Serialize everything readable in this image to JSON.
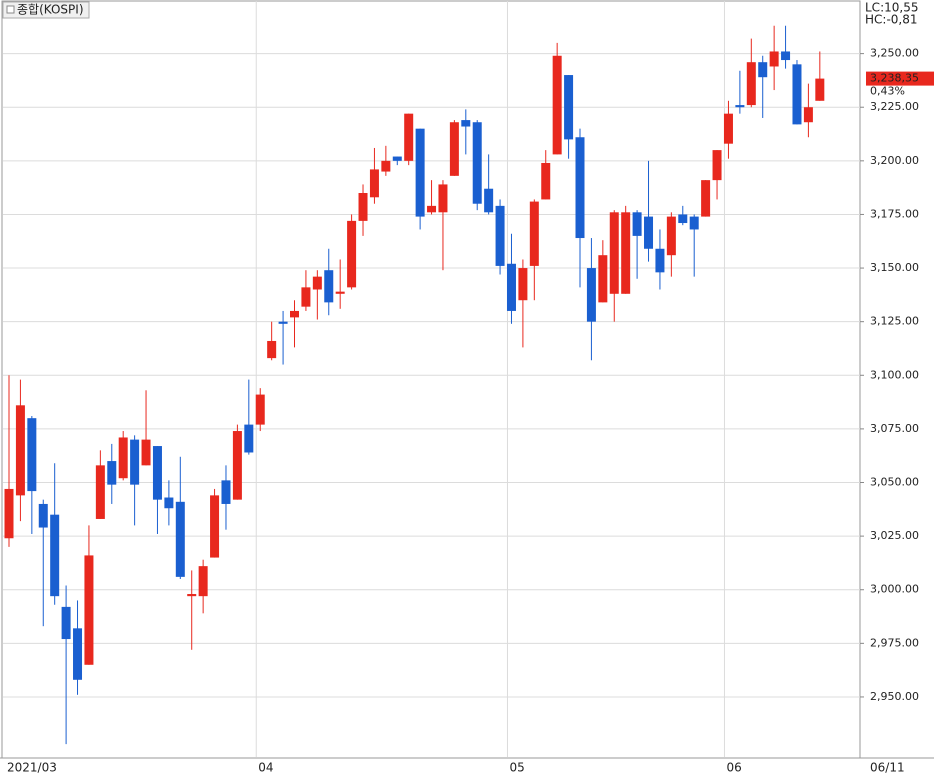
{
  "chart_data": {
    "type": "candlestick",
    "title": "종합(KOSPI)",
    "indicators": [
      {
        "text": "LC:10,55",
        "color": "#e8281e"
      },
      {
        "text": "HC:-0,81",
        "color": "#1a5fd0"
      }
    ],
    "last_price": {
      "value": 3238.35,
      "label": "3,238,35"
    },
    "change_label": "0,43%",
    "date_label": "06/11",
    "up_color": "#e8281e",
    "down_color": "#1a5fd0",
    "grid": true,
    "ylim": [
      2922,
      3275
    ],
    "yticks": [
      {
        "value": 2950,
        "label": "2,950.00"
      },
      {
        "value": 2975,
        "label": "2,975.00"
      },
      {
        "value": 3000,
        "label": "3,000.00"
      },
      {
        "value": 3025,
        "label": "3,025.00"
      },
      {
        "value": 3050,
        "label": "3,050.00"
      },
      {
        "value": 3075,
        "label": "3,075.00"
      },
      {
        "value": 3100,
        "label": "3,100.00"
      },
      {
        "value": 3125,
        "label": "3,125.00"
      },
      {
        "value": 3150,
        "label": "3,150.00"
      },
      {
        "value": 3175,
        "label": "3,175.00"
      },
      {
        "value": 3200,
        "label": "3,200.00"
      },
      {
        "value": 3225,
        "label": "3,225.00"
      },
      {
        "value": 3250,
        "label": "3,250.00"
      }
    ],
    "categories": [
      "2021/03",
      null,
      null,
      null,
      null,
      null,
      null,
      null,
      null,
      null,
      null,
      null,
      null,
      null,
      null,
      null,
      null,
      null,
      null,
      null,
      null,
      null,
      "04",
      null,
      null,
      null,
      null,
      null,
      null,
      null,
      null,
      null,
      null,
      null,
      null,
      null,
      null,
      null,
      null,
      null,
      null,
      null,
      null,
      null,
      "05",
      null,
      null,
      null,
      null,
      null,
      null,
      null,
      null,
      null,
      null,
      null,
      null,
      null,
      null,
      null,
      null,
      null,
      null,
      "06",
      null,
      null,
      null,
      null,
      null,
      null,
      null,
      null
    ],
    "open": [
      3024,
      3044,
      3080,
      3040,
      3035,
      2992,
      2982,
      2965,
      3033,
      3060,
      3052,
      3070,
      3058,
      3067,
      3043,
      3041,
      2997,
      2997,
      3015,
      3051,
      3042,
      3077,
      3077,
      3108,
      3125,
      3127,
      3132,
      3140,
      3149,
      3138,
      3141,
      3172,
      3183,
      3195,
      3202,
      3200,
      3215,
      3176,
      3176,
      3193,
      3219,
      3218,
      3187,
      3179,
      3152,
      3135,
      3151,
      3182,
      3203,
      3240,
      3211,
      3150,
      3134,
      3138,
      3138,
      3176,
      3174,
      3159,
      3156,
      3175,
      3174,
      3174,
      3191,
      3208,
      3226,
      3226,
      3246,
      3244,
      3251,
      3245,
      3218,
      3228
    ],
    "high": [
      3100,
      3098,
      3081,
      3042,
      3059,
      3002,
      2995,
      3030,
      3065,
      3068,
      3074,
      3072,
      3093,
      3067,
      3051,
      3062,
      3009,
      3014,
      3047,
      3058,
      3077,
      3098,
      3094,
      3125,
      3130,
      3135,
      3149,
      3149,
      3159,
      3154,
      3175,
      3189,
      3206,
      3207,
      3202,
      3222,
      3215,
      3191,
      3191,
      3219,
      3224,
      3219,
      3203,
      3182,
      3166,
      3154,
      3182,
      3205,
      3255,
      3240,
      3215,
      3164,
      3163,
      3177,
      3179,
      3177,
      3200,
      3168,
      3176,
      3179,
      3175,
      3191,
      3205,
      3228,
      3242,
      3257,
      3249,
      3263,
      3263,
      3247,
      3236,
      3251
    ],
    "low": [
      3020,
      3032,
      3026,
      2983,
      2993,
      2928,
      2951,
      2965,
      3033,
      3040,
      3051,
      3030,
      3058,
      3026,
      3030,
      3005,
      2972,
      2989,
      3015,
      3028,
      3042,
      3063,
      3074,
      3107,
      3105,
      3113,
      3130,
      3126,
      3128,
      3131,
      3140,
      3165,
      3180,
      3193,
      3198,
      3198,
      3168,
      3175,
      3149,
      3193,
      3203,
      3177,
      3175,
      3147,
      3124,
      3113,
      3135,
      3182,
      3203,
      3201,
      3141,
      3107,
      3134,
      3125,
      3138,
      3145,
      3153,
      3140,
      3146,
      3170,
      3146,
      3174,
      3182,
      3201,
      3222,
      3225,
      3220,
      3233,
      3243,
      3217,
      3211,
      3228
    ],
    "close": [
      3047,
      3086,
      3046,
      3029,
      2997,
      2977,
      2958,
      3016,
      3058,
      3049,
      3071,
      3049,
      3070,
      3042,
      3038,
      3006,
      2998,
      3011,
      3044,
      3040,
      3074,
      3064,
      3091,
      3116,
      3124,
      3130,
      3141,
      3146,
      3134,
      3139,
      3172,
      3185,
      3196,
      3200,
      3200,
      3222,
      3174,
      3179,
      3189,
      3218,
      3216,
      3180,
      3176,
      3151,
      3130,
      3150,
      3181,
      3199,
      3249,
      3210,
      3164,
      3125,
      3156,
      3176,
      3176,
      3165,
      3159,
      3148,
      3174,
      3171,
      3168,
      3191,
      3205,
      3222,
      3225,
      3246,
      3239,
      3251,
      3247,
      3217,
      3225,
      3238.35
    ]
  }
}
